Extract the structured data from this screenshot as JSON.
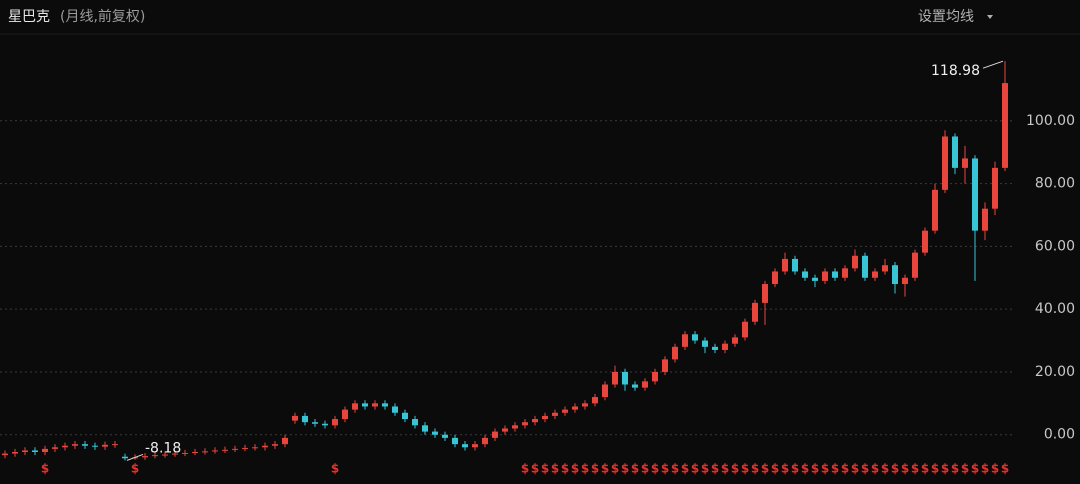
{
  "chart_data": {
    "type": "candlestick",
    "title": "星巴克",
    "subtitle": "(月线,前复权)",
    "settings_button": "设置均线",
    "up_color": "#e8463c",
    "down_color": "#38c6d6",
    "grid": true,
    "ylim": [
      -9,
      127
    ],
    "yticks": [
      {
        "value": 0,
        "label": "0.00"
      },
      {
        "value": 20,
        "label": "20.00"
      },
      {
        "value": 40,
        "label": "40.00"
      },
      {
        "value": 60,
        "label": "60.00"
      },
      {
        "value": 80,
        "label": "80.00"
      },
      {
        "value": 100,
        "label": "100.00"
      }
    ],
    "open": [
      -6.5,
      -6,
      -5.5,
      -5,
      -5.5,
      -4.5,
      -4,
      -3.5,
      -3,
      -3.5,
      -3.8,
      -3.2,
      -7,
      -7.5,
      -7.2,
      -6.8,
      -6.5,
      -6.3,
      -6,
      -5.8,
      -5.5,
      -5.3,
      -5,
      -4.8,
      -4.5,
      -4.2,
      -4,
      -3.5,
      -3,
      4.5,
      6,
      4,
      3.5,
      3,
      5,
      8,
      10,
      9,
      10,
      9,
      7,
      5,
      3,
      1,
      0,
      -1,
      -3,
      -4,
      -3,
      -1,
      1,
      2,
      3,
      4,
      5,
      6,
      7,
      8,
      9,
      10,
      12,
      16,
      20,
      16,
      15,
      17,
      20,
      24,
      28,
      32,
      30,
      28,
      27,
      29,
      31,
      36,
      42,
      48,
      52,
      56,
      52,
      50,
      49,
      52,
      50,
      53,
      57,
      50,
      52,
      54,
      48,
      50,
      58,
      65,
      78,
      95,
      85,
      88,
      65,
      72,
      85
    ],
    "high": [
      -5,
      -4.5,
      -4,
      -4,
      -3.5,
      -3,
      -2.5,
      -2,
      -2,
      -2.5,
      -2.2,
      -2,
      -6,
      -6.2,
      -5.8,
      -5.5,
      -5.3,
      -5,
      -4.8,
      -4.5,
      -4.3,
      -4,
      -3.8,
      -3.5,
      -3.2,
      -3,
      -2.5,
      -2,
      0,
      7,
      7,
      5,
      4.5,
      6,
      9,
      11,
      11,
      11,
      11,
      10,
      8,
      6,
      4,
      2,
      1,
      0,
      -2,
      -2,
      0,
      2,
      3,
      4,
      5,
      6,
      7,
      8,
      9,
      10,
      11,
      13,
      17,
      22,
      21,
      17,
      18,
      21,
      25,
      29,
      33,
      33,
      31,
      29,
      30,
      32,
      37,
      43,
      49,
      53,
      58,
      57,
      53,
      51,
      53,
      53,
      54,
      59,
      58,
      53,
      56,
      55,
      51,
      59,
      66,
      80,
      97,
      96,
      92,
      89,
      74,
      87,
      118.98
    ],
    "low": [
      -7.5,
      -7,
      -6.5,
      -6.5,
      -6.5,
      -5.5,
      -5,
      -4.5,
      -4.5,
      -4.8,
      -4.8,
      -4.2,
      -8.18,
      -8,
      -8,
      -7.5,
      -7.3,
      -7,
      -6.8,
      -6.5,
      -6.3,
      -6,
      -5.8,
      -5.5,
      -5.2,
      -5,
      -5,
      -4.5,
      -4,
      3.5,
      3,
      2.5,
      2,
      2,
      4,
      7,
      8,
      8,
      8,
      6,
      4,
      2,
      0,
      -1,
      -2,
      -4,
      -5,
      -5,
      -4,
      -2,
      0,
      1,
      2,
      3,
      4,
      5,
      6,
      7,
      8,
      9,
      11,
      15,
      14,
      14,
      14,
      16,
      19,
      23,
      27,
      29,
      26,
      26,
      26,
      28,
      30,
      35,
      35,
      47,
      51,
      51,
      49,
      47,
      48,
      49,
      49,
      52,
      49,
      49,
      51,
      45,
      44,
      49,
      57,
      64,
      77,
      83,
      80,
      49,
      62,
      70,
      84
    ],
    "close": [
      -6,
      -5.5,
      -5,
      -5.5,
      -4.5,
      -4,
      -3.5,
      -3,
      -3.5,
      -3.8,
      -3.2,
      -3,
      -7.5,
      -7.2,
      -6.8,
      -6.5,
      -6.3,
      -6,
      -5.8,
      -5.5,
      -5.3,
      -5,
      -4.8,
      -4.5,
      -4.2,
      -4,
      -3.5,
      -3,
      -1,
      6,
      4,
      3.5,
      3,
      5,
      8,
      10,
      9,
      10,
      9,
      7,
      5,
      3,
      1,
      0,
      -1,
      -3,
      -4,
      -3,
      -1,
      1,
      2,
      3,
      4,
      5,
      6,
      7,
      8,
      9,
      10,
      12,
      16,
      20,
      16,
      15,
      17,
      20,
      24,
      28,
      32,
      30,
      28,
      27,
      29,
      31,
      36,
      42,
      48,
      52,
      56,
      52,
      50,
      49,
      52,
      50,
      53,
      57,
      50,
      52,
      54,
      48,
      50,
      58,
      65,
      78,
      95,
      85,
      88,
      65,
      72,
      85,
      112
    ],
    "dividend_label": "$",
    "dividend_color": "#e8302a",
    "dividend_at": [
      4,
      13,
      33,
      52,
      53,
      54,
      55,
      56,
      57,
      58,
      59,
      60,
      61,
      62,
      63,
      64,
      65,
      66,
      67,
      68,
      69,
      70,
      71,
      72,
      73,
      74,
      75,
      76,
      77,
      78,
      79,
      80,
      81,
      82,
      83,
      84,
      85,
      86,
      87,
      88,
      89,
      90,
      91,
      92,
      93,
      94,
      95,
      96,
      97,
      98,
      99,
      100
    ]
  }
}
